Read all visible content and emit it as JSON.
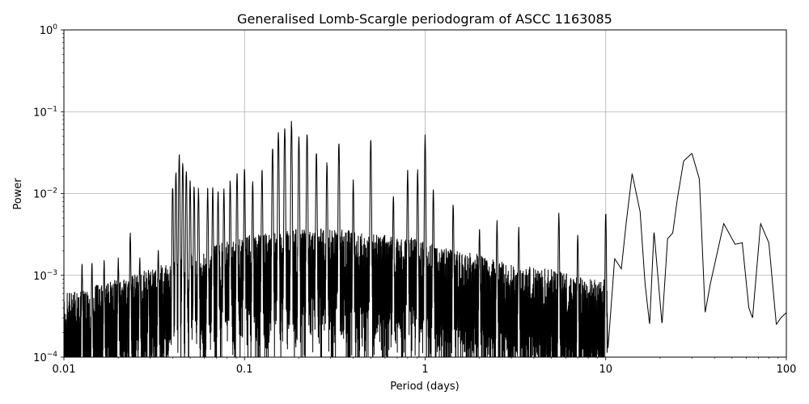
{
  "chart_data": {
    "type": "line",
    "title": "Generalised Lomb-Scargle periodogram of ASCC 1163085",
    "xlabel": "Period (days)",
    "ylabel": "Power",
    "xscale": "log",
    "yscale": "log",
    "xlim": [
      0.01,
      100
    ],
    "ylim": [
      0.0001,
      1
    ],
    "grid": true,
    "x_ticks": [
      {
        "value": 0.01,
        "label": "0.01"
      },
      {
        "value": 0.1,
        "label": "0.1"
      },
      {
        "value": 1,
        "label": "1"
      },
      {
        "value": 10,
        "label": "10"
      },
      {
        "value": 100,
        "label": "100"
      }
    ],
    "y_ticks": [
      {
        "value": 0.0001,
        "base": "10",
        "exp": "−4"
      },
      {
        "value": 0.001,
        "base": "10",
        "exp": "−3"
      },
      {
        "value": 0.01,
        "base": "10",
        "exp": "−2"
      },
      {
        "value": 0.1,
        "base": "10",
        "exp": "−1"
      },
      {
        "value": 1,
        "base": "10",
        "exp": "0"
      }
    ],
    "line_color": "#000000",
    "series": [
      {
        "note": "Dense periodogram envelope: baseline noise floor and prominent alias peaks (period in days, power)",
        "noise_floor": [
          [
            0.01,
            0.0004
          ],
          [
            0.02,
            0.0006
          ],
          [
            0.03,
            0.0008
          ],
          [
            0.05,
            0.0012
          ],
          [
            0.08,
            0.0018
          ],
          [
            0.12,
            0.0022
          ],
          [
            0.2,
            0.0025
          ],
          [
            0.3,
            0.0025
          ],
          [
            0.5,
            0.0022
          ],
          [
            0.8,
            0.002
          ],
          [
            1.2,
            0.0015
          ],
          [
            2,
            0.0012
          ],
          [
            3,
            0.0009
          ],
          [
            5,
            0.0008
          ],
          [
            8,
            0.0006
          ]
        ],
        "peaks": [
          [
            0.0126,
            0.0014
          ],
          [
            0.0143,
            0.0015
          ],
          [
            0.0167,
            0.0016
          ],
          [
            0.02,
            0.0017
          ],
          [
            0.0233,
            0.0035
          ],
          [
            0.0263,
            0.0017
          ],
          [
            0.0294,
            0.0012
          ],
          [
            0.0333,
            0.0022
          ],
          [
            0.04,
            0.013
          ],
          [
            0.0417,
            0.02
          ],
          [
            0.0435,
            0.032
          ],
          [
            0.0455,
            0.025
          ],
          [
            0.0476,
            0.02
          ],
          [
            0.05,
            0.015
          ],
          [
            0.0526,
            0.013
          ],
          [
            0.0556,
            0.012
          ],
          [
            0.0625,
            0.012
          ],
          [
            0.0667,
            0.012
          ],
          [
            0.0714,
            0.011
          ],
          [
            0.0769,
            0.012
          ],
          [
            0.0833,
            0.015
          ],
          [
            0.0909,
            0.019
          ],
          [
            0.1,
            0.021
          ],
          [
            0.111,
            0.015
          ],
          [
            0.125,
            0.021
          ],
          [
            0.143,
            0.04
          ],
          [
            0.154,
            0.06
          ],
          [
            0.167,
            0.07
          ],
          [
            0.182,
            0.08
          ],
          [
            0.2,
            0.05
          ],
          [
            0.222,
            0.058
          ],
          [
            0.25,
            0.034
          ],
          [
            0.286,
            0.025
          ],
          [
            0.333,
            0.045
          ],
          [
            0.4,
            0.015
          ],
          [
            0.5,
            0.05
          ],
          [
            0.667,
            0.01
          ],
          [
            0.8,
            0.02
          ],
          [
            0.909,
            0.02
          ],
          [
            1.0,
            0.053
          ],
          [
            1.11,
            0.012
          ],
          [
            1.43,
            0.008
          ],
          [
            2.0,
            0.004
          ],
          [
            2.5,
            0.005
          ],
          [
            3.3,
            0.004
          ],
          [
            5.5,
            0.0062
          ],
          [
            7.0,
            0.0035
          ],
          [
            10.0,
            0.0062
          ]
        ],
        "smooth_tail": [
          [
            10.3,
            0.00013
          ],
          [
            11.2,
            0.0016
          ],
          [
            12.2,
            0.0012
          ],
          [
            13.0,
            0.0045
          ],
          [
            14.0,
            0.0175
          ],
          [
            15.5,
            0.006
          ],
          [
            16.5,
            0.0008
          ],
          [
            17.5,
            0.00025
          ],
          [
            18.5,
            0.0035
          ],
          [
            20.5,
            0.00025
          ],
          [
            22.0,
            0.0028
          ],
          [
            23.5,
            0.0033
          ],
          [
            25.0,
            0.009
          ],
          [
            27.0,
            0.025
          ],
          [
            30.0,
            0.031
          ],
          [
            33.0,
            0.015
          ],
          [
            35.5,
            0.00035
          ],
          [
            38.0,
            0.0008
          ],
          [
            45.0,
            0.0043
          ],
          [
            52.0,
            0.0024
          ],
          [
            57.0,
            0.0025
          ],
          [
            62.0,
            0.0004
          ],
          [
            65.0,
            0.0003
          ],
          [
            72.0,
            0.0043
          ],
          [
            80.0,
            0.0025
          ],
          [
            88.0,
            0.00025
          ],
          [
            93.0,
            0.0003
          ],
          [
            100.0,
            0.00035
          ]
        ]
      }
    ]
  }
}
